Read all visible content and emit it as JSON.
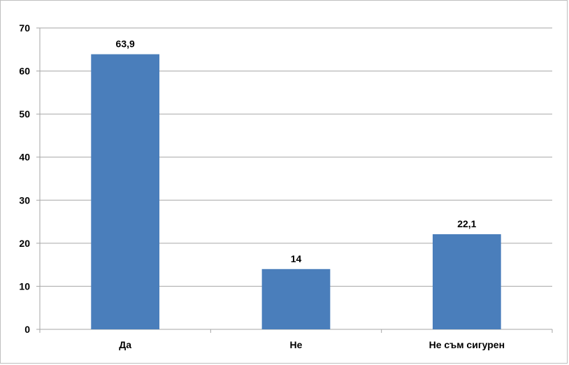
{
  "chart_data": {
    "type": "bar",
    "categories": [
      "Да",
      "Не",
      "Не съм сигурен"
    ],
    "values": [
      63.9,
      14,
      22.1
    ],
    "data_labels": [
      "63,9",
      "14",
      "22,1"
    ],
    "title": "",
    "xlabel": "",
    "ylabel": "",
    "ylim": [
      0,
      70
    ],
    "y_ticks": [
      0,
      10,
      20,
      30,
      40,
      50,
      60,
      70
    ],
    "grid": true,
    "legend": "none",
    "bar_color": "#4a7ebb",
    "grid_color": "#a6a6a6"
  }
}
